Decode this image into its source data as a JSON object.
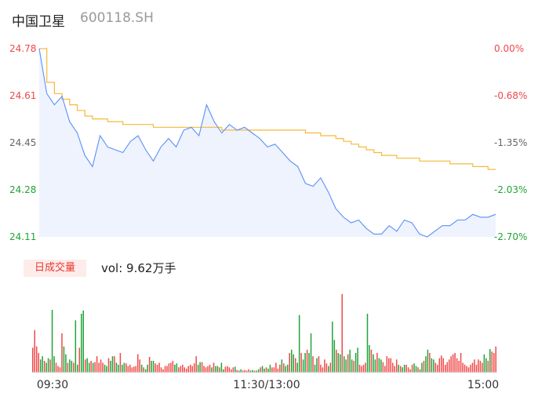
{
  "header": {
    "stock_name": "中国卫星",
    "stock_code": "600118.SH"
  },
  "volume_panel": {
    "tag_label": "日成交量",
    "vol_text": "vol: 9.62万手"
  },
  "colors": {
    "price_line": "#5b8ff9",
    "avg_line": "#f6b93b",
    "area_fill": "#eef3fd",
    "up": "#f04848",
    "down": "#21a336",
    "neutral": "#888888",
    "axis_text": "#666666"
  },
  "chart_data": [
    {
      "type": "line",
      "title": "",
      "ylim": [
        24.11,
        24.78
      ],
      "y_ticks_left": [
        "24.78",
        "24.61",
        "24.45",
        "24.28",
        "24.11"
      ],
      "y_ticks_right": [
        "0.00%",
        "-0.68%",
        "-1.35%",
        "-2.03%",
        "-2.70%"
      ],
      "x": [
        0,
        4,
        8,
        12,
        16,
        20,
        24,
        28,
        32,
        36,
        40,
        44,
        48,
        52,
        56,
        60,
        64,
        68,
        72,
        76,
        80,
        84,
        88,
        92,
        96,
        100,
        104,
        108,
        112,
        116,
        120,
        124,
        128,
        132,
        136,
        140,
        144,
        148,
        152,
        156,
        160,
        164,
        168,
        172,
        176,
        180,
        184,
        188,
        192,
        196,
        200,
        204,
        208,
        212,
        216,
        220,
        224,
        228,
        232,
        236,
        240
      ],
      "series": [
        {
          "values": [
            24.78,
            24.62,
            24.58,
            24.61,
            24.52,
            24.48,
            24.4,
            24.36,
            24.47,
            24.43,
            24.42,
            24.41,
            24.45,
            24.47,
            24.42,
            24.38,
            24.43,
            24.46,
            24.43,
            24.49,
            24.5,
            24.47,
            24.58,
            24.52,
            24.48,
            24.51,
            24.49,
            24.5,
            24.48,
            24.46,
            24.43,
            24.44,
            24.41,
            24.38,
            24.36,
            24.3,
            24.29,
            24.32,
            24.27,
            24.21,
            24.18,
            24.16,
            24.17,
            24.14,
            24.12,
            24.12,
            24.15,
            24.13,
            24.17,
            24.16,
            24.12,
            24.11,
            24.13,
            24.15,
            24.15,
            24.17,
            24.17,
            24.19,
            24.18,
            24.18,
            24.19
          ]
        },
        {
          "values": [
            24.78,
            24.66,
            24.62,
            24.6,
            24.58,
            24.56,
            24.54,
            24.53,
            24.53,
            24.52,
            24.52,
            24.51,
            24.51,
            24.51,
            24.51,
            24.5,
            24.5,
            24.5,
            24.5,
            24.5,
            24.5,
            24.5,
            24.5,
            24.5,
            24.49,
            24.49,
            24.49,
            24.49,
            24.49,
            24.49,
            24.49,
            24.49,
            24.49,
            24.49,
            24.49,
            24.48,
            24.48,
            24.47,
            24.47,
            24.46,
            24.45,
            24.44,
            24.43,
            24.42,
            24.41,
            24.4,
            24.4,
            24.39,
            24.39,
            24.39,
            24.38,
            24.38,
            24.38,
            24.38,
            24.37,
            24.37,
            24.37,
            24.36,
            24.36,
            24.35,
            24.35
          ]
        }
      ]
    },
    {
      "type": "bar",
      "x_tick_labels": [
        "09:30",
        "11:30/13:00",
        "15:00"
      ],
      "values": [
        38,
        65,
        40,
        30,
        20,
        25,
        18,
        15,
        22,
        20,
        96,
        25,
        15,
        10,
        8,
        60,
        40,
        28,
        15,
        20,
        18,
        15,
        80,
        12,
        38,
        90,
        95,
        20,
        22,
        15,
        18,
        15,
        16,
        25,
        15,
        20,
        15,
        12,
        10,
        22,
        18,
        25,
        25,
        15,
        12,
        30,
        12,
        15,
        14,
        10,
        12,
        8,
        9,
        10,
        28,
        20,
        12,
        8,
        5,
        12,
        24,
        18,
        18,
        14,
        12,
        15,
        8,
        5,
        10,
        10,
        14,
        15,
        18,
        12,
        14,
        8,
        10,
        12,
        8,
        6,
        10,
        12,
        10,
        14,
        25,
        12,
        16,
        16,
        10,
        8,
        10,
        12,
        8,
        15,
        10,
        10,
        8,
        15,
        5,
        9,
        10,
        8,
        5,
        8,
        9,
        4,
        3,
        5,
        3,
        4,
        3,
        5,
        3,
        4,
        3,
        3,
        5,
        8,
        10,
        6,
        8,
        6,
        12,
        8,
        8,
        15,
        6,
        12,
        20,
        14,
        10,
        12,
        30,
        35,
        28,
        22,
        15,
        88,
        30,
        20,
        30,
        35,
        30,
        60,
        25,
        12,
        22,
        25,
        12,
        8,
        20,
        14,
        10,
        15,
        78,
        50,
        35,
        30,
        28,
        120,
        25,
        20,
        28,
        35,
        20,
        18,
        30,
        38,
        12,
        10,
        12,
        15,
        90,
        42,
        35,
        28,
        20,
        30,
        22,
        20,
        16,
        10,
        25,
        22,
        22,
        15,
        10,
        20,
        12,
        10,
        8,
        12,
        12,
        8,
        5,
        12,
        14,
        10,
        8,
        5,
        15,
        18,
        25,
        35,
        30,
        22,
        20,
        15,
        12,
        22,
        26,
        22,
        12,
        16,
        20,
        25,
        28,
        30,
        22,
        18,
        30,
        15,
        12,
        10,
        8,
        12,
        15,
        20,
        12,
        20,
        18,
        15,
        28,
        22,
        18,
        36,
        32,
        30,
        40
      ]
    }
  ]
}
